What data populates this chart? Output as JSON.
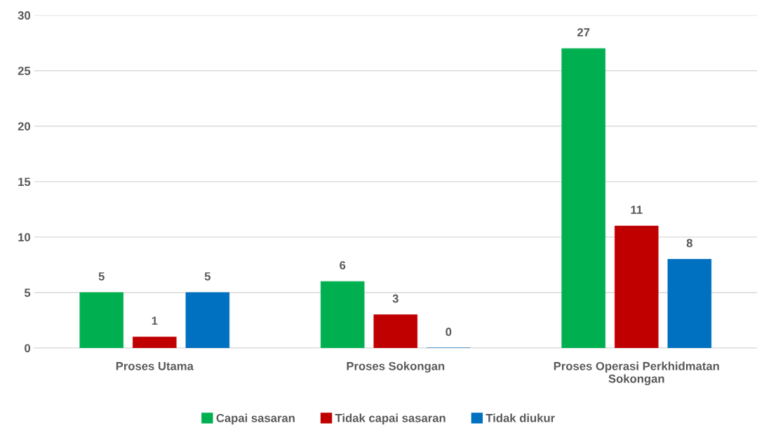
{
  "chart_data": {
    "type": "bar",
    "categories": [
      "Proses Utama",
      "Proses Sokongan",
      "Proses Operasi Perkhidmatan Sokongan"
    ],
    "series": [
      {
        "name": "Capai sasaran",
        "color": "#00b050",
        "values": [
          5,
          6,
          27
        ]
      },
      {
        "name": "Tidak capai sasaran",
        "color": "#c00000",
        "values": [
          1,
          3,
          11
        ]
      },
      {
        "name": "Tidak diukur",
        "color": "#0070c0",
        "values": [
          5,
          0,
          8
        ]
      }
    ],
    "ylim": [
      0,
      30
    ],
    "yticks": [
      0,
      5,
      10,
      15,
      20,
      25,
      30
    ],
    "grid": "y",
    "legend": "bottom",
    "data_labels": true
  }
}
